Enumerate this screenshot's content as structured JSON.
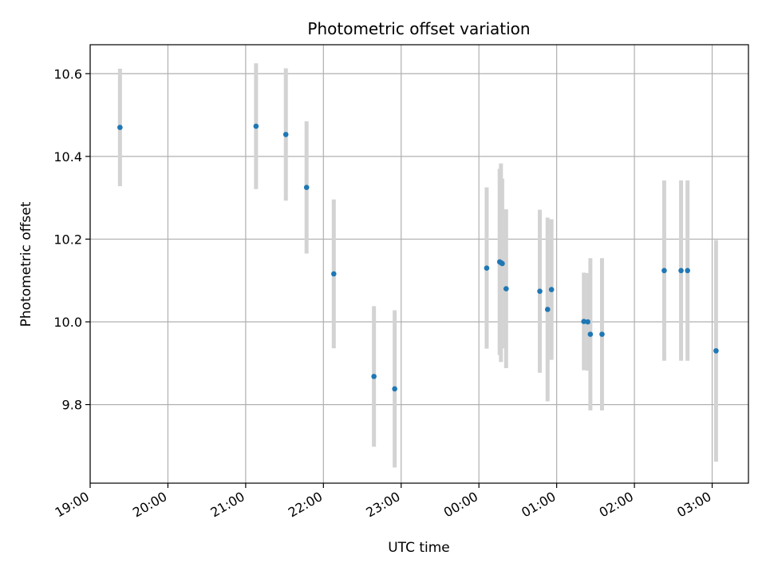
{
  "chart_data": {
    "type": "scatter",
    "title": "Photometric offset variation",
    "xlabel": "UTC time",
    "ylabel": "Photometric offset",
    "x_ticks": [
      "19:00",
      "20:00",
      "21:00",
      "22:00",
      "23:00",
      "00:00",
      "01:00",
      "02:00",
      "03:00"
    ],
    "y_ticks": [
      "9.8",
      "10.0",
      "10.2",
      "10.4",
      "10.6"
    ],
    "x_range": [
      "19:00",
      "03:28"
    ],
    "ylim": [
      9.61,
      10.67
    ],
    "grid": true,
    "colors": {
      "point": "#1f77b4",
      "errorbar": "#d3d3d3",
      "grid": "#b0b0b0"
    },
    "points": [
      {
        "time": "19:23",
        "y": 10.47,
        "err": 0.142
      },
      {
        "time": "21:08",
        "y": 10.473,
        "err": 0.152
      },
      {
        "time": "21:31",
        "y": 10.453,
        "err": 0.16
      },
      {
        "time": "21:47",
        "y": 10.325,
        "err": 0.16
      },
      {
        "time": "22:08",
        "y": 10.116,
        "err": 0.18
      },
      {
        "time": "22:39",
        "y": 9.868,
        "err": 0.17
      },
      {
        "time": "22:55",
        "y": 9.838,
        "err": 0.19
      },
      {
        "time": "00:06",
        "y": 10.13,
        "err": 0.195
      },
      {
        "time": "00:16",
        "y": 10.145,
        "err": 0.225
      },
      {
        "time": "00:17",
        "y": 10.143,
        "err": 0.24
      },
      {
        "time": "00:18",
        "y": 10.141,
        "err": 0.205
      },
      {
        "time": "00:21",
        "y": 10.08,
        "err": 0.192
      },
      {
        "time": "00:47",
        "y": 10.074,
        "err": 0.197
      },
      {
        "time": "00:53",
        "y": 10.03,
        "err": 0.222
      },
      {
        "time": "00:56",
        "y": 10.078,
        "err": 0.17
      },
      {
        "time": "01:21",
        "y": 10.001,
        "err": 0.118
      },
      {
        "time": "01:24",
        "y": 10.0,
        "err": 0.118
      },
      {
        "time": "01:26",
        "y": 9.97,
        "err": 0.184
      },
      {
        "time": "01:35",
        "y": 9.97,
        "err": 0.184
      },
      {
        "time": "02:23",
        "y": 10.124,
        "err": 0.218
      },
      {
        "time": "02:36",
        "y": 10.124,
        "err": 0.218
      },
      {
        "time": "02:41",
        "y": 10.124,
        "err": 0.218
      },
      {
        "time": "03:03",
        "y": 9.93,
        "err": 0.268
      }
    ]
  }
}
